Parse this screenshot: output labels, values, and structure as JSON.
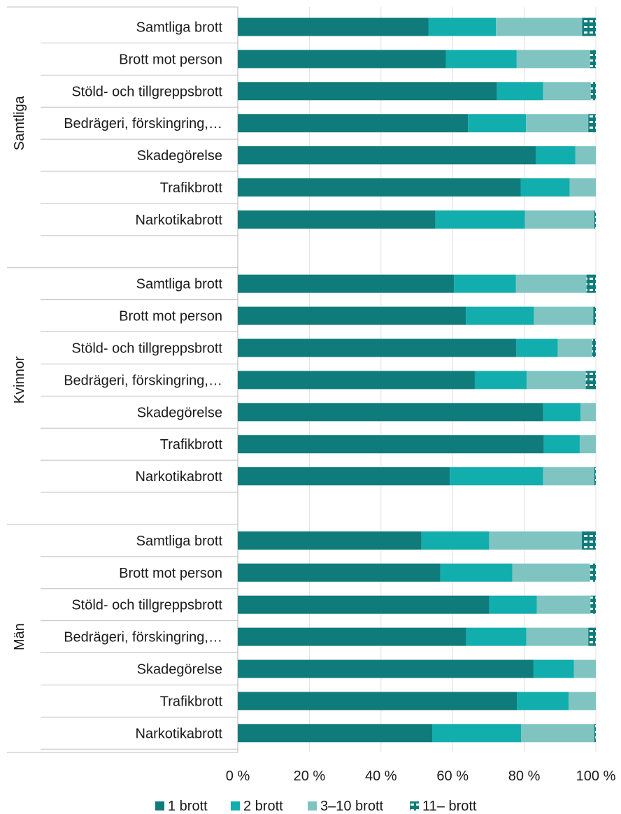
{
  "chart_data": {
    "type": "bar",
    "orientation": "horizontal",
    "stacked": true,
    "groups": [
      {
        "name": "Samtliga",
        "categories": [
          "Samtliga brott",
          "Brott mot person",
          "Stöld- och tillgreppsbrott",
          "Bedrägeri, förskingring,…",
          "Skadegörelse",
          "Trafikbrott",
          "Narkotikabrott"
        ],
        "values": [
          [
            53.3,
            18.8,
            24.1,
            3.8
          ],
          [
            58.1,
            19.8,
            20.5,
            1.6
          ],
          [
            72.4,
            12.9,
            13.3,
            1.4
          ],
          [
            64.3,
            16.2,
            17.4,
            2.1
          ],
          [
            83.2,
            11.1,
            5.7,
            0
          ],
          [
            79.0,
            13.7,
            7.3,
            0
          ],
          [
            55.2,
            25.0,
            19.4,
            0.4
          ]
        ]
      },
      {
        "name": "Kvinnor",
        "categories": [
          "Samtliga brott",
          "Brott mot person",
          "Stöld- och tillgreppsbrott",
          "Bedrägeri, förskingring,…",
          "Skadegörelse",
          "Trafikbrott",
          "Narkotikabrott"
        ],
        "values": [
          [
            60.4,
            17.3,
            19.7,
            2.6
          ],
          [
            63.7,
            19.0,
            16.6,
            0.7
          ],
          [
            77.8,
            11.6,
            9.6,
            1.0
          ],
          [
            66.2,
            14.5,
            16.5,
            2.8
          ],
          [
            85.3,
            10.4,
            4.3,
            0
          ],
          [
            85.5,
            10.0,
            4.5,
            0
          ],
          [
            59.2,
            26.1,
            14.3,
            0.4
          ]
        ]
      },
      {
        "name": "Män",
        "categories": [
          "Samtliga brott",
          "Brott mot person",
          "Stöld- och tillgreppsbrott",
          "Bedrägeri, förskingring,…",
          "Skadegörelse",
          "Trafikbrott",
          "Narkotikabrott"
        ],
        "values": [
          [
            51.3,
            18.9,
            25.9,
            3.9
          ],
          [
            56.6,
            20.1,
            21.7,
            1.6
          ],
          [
            70.2,
            13.3,
            15.0,
            1.5
          ],
          [
            63.8,
            16.8,
            17.3,
            2.1
          ],
          [
            82.6,
            11.3,
            6.1,
            0
          ],
          [
            78.0,
            14.4,
            7.6,
            0
          ],
          [
            54.3,
            24.8,
            20.5,
            0.4
          ]
        ]
      }
    ],
    "series": [
      {
        "name": "1 brott",
        "color": "#0f7b7b",
        "pattern": "solid"
      },
      {
        "name": "2 brott",
        "color": "#12adad",
        "pattern": "solid"
      },
      {
        "name": "3–10 brott",
        "color": "#7fc4c0",
        "pattern": "solid"
      },
      {
        "name": "11– brott",
        "color": "#0f7b7b",
        "pattern": "dashed"
      }
    ],
    "x_ticks": [
      "0 %",
      "20 %",
      "40 %",
      "60 %",
      "80 %",
      "100 %"
    ],
    "xlim": [
      0,
      100
    ],
    "grid": true,
    "legend_position": "bottom"
  }
}
